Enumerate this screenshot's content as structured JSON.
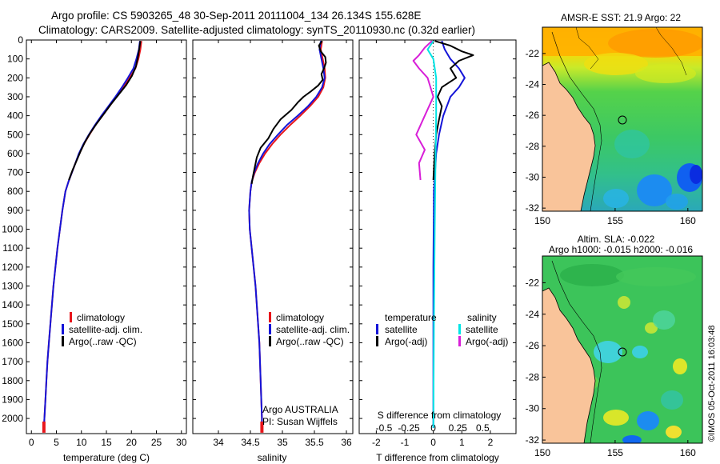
{
  "header": {
    "line1": "Argo profile: CS 5903265_48 30-Sep-2011 20111004_134 26.134S 155.628E",
    "line2": "Climatology: CARS2009. Satellite-adjusted climatology: synTS_20110930.nc (0.32d earlier)"
  },
  "footer": {
    "stamp": "©IMOS 05-Oct-2011 16:03:48"
  },
  "colors": {
    "climatology": "#e8151b",
    "satellite": "#1414d8",
    "argo": "#000000",
    "salinity_satellite": "#00e5e5",
    "salinity_argo": "#d81fd8",
    "land": "#f9c49a"
  },
  "chart_data": [
    {
      "id": "temperature",
      "type": "line",
      "xlabel": "temperature (deg C)",
      "ylabel": "",
      "xlim": [
        -1,
        31
      ],
      "ylim": [
        2080,
        0
      ],
      "xticks": [
        0,
        5,
        10,
        15,
        20,
        25,
        30
      ],
      "yticks": [
        0,
        100,
        200,
        300,
        400,
        500,
        600,
        700,
        800,
        900,
        1000,
        1100,
        1200,
        1300,
        1400,
        1500,
        1600,
        1700,
        1800,
        1900,
        2000
      ],
      "legend": [
        "climatology",
        "satellite-adj. clim.",
        "Argo(..raw -QC)"
      ],
      "series": [
        {
          "name": "climatology",
          "color": "#e8151b",
          "points": [
            [
              22.0,
              5
            ],
            [
              21.8,
              50
            ],
            [
              21.4,
              100
            ],
            [
              20.8,
              150
            ],
            [
              19.6,
              200
            ],
            [
              18.4,
              250
            ],
            [
              17.0,
              300
            ],
            [
              15.6,
              350
            ],
            [
              14.2,
              400
            ],
            [
              12.8,
              450
            ],
            [
              11.6,
              500
            ],
            [
              10.5,
              550
            ],
            [
              9.6,
              600
            ],
            [
              8.8,
              650
            ],
            [
              8.1,
              700
            ],
            [
              7.4,
              750
            ],
            [
              6.8,
              800
            ],
            [
              6.2,
              900
            ],
            [
              5.7,
              1000
            ],
            [
              5.2,
              1100
            ],
            [
              4.8,
              1200
            ],
            [
              4.4,
              1300
            ],
            [
              4.1,
              1400
            ],
            [
              3.8,
              1500
            ],
            [
              3.5,
              1600
            ],
            [
              3.2,
              1700
            ],
            [
              3.0,
              1800
            ],
            [
              2.8,
              1900
            ],
            [
              2.6,
              2000
            ],
            [
              2.5,
              2050
            ]
          ]
        },
        {
          "name": "satellite-adj. clim.",
          "color": "#1414d8",
          "points": [
            [
              21.7,
              5
            ],
            [
              21.5,
              50
            ],
            [
              21.0,
              100
            ],
            [
              20.4,
              150
            ],
            [
              19.3,
              200
            ],
            [
              18.1,
              250
            ],
            [
              16.8,
              300
            ],
            [
              15.4,
              350
            ],
            [
              14.0,
              400
            ],
            [
              12.7,
              450
            ],
            [
              11.5,
              500
            ],
            [
              10.4,
              550
            ],
            [
              9.5,
              600
            ],
            [
              8.8,
              650
            ],
            [
              8.1,
              700
            ],
            [
              7.4,
              750
            ],
            [
              6.8,
              800
            ],
            [
              6.2,
              900
            ],
            [
              5.7,
              1000
            ],
            [
              5.2,
              1100
            ],
            [
              4.8,
              1200
            ],
            [
              4.4,
              1300
            ],
            [
              4.1,
              1400
            ],
            [
              3.8,
              1500
            ],
            [
              3.5,
              1600
            ],
            [
              3.2,
              1700
            ],
            [
              3.0,
              1800
            ],
            [
              2.8,
              1900
            ],
            [
              2.6,
              2000
            ],
            [
              2.5,
              2050
            ]
          ]
        },
        {
          "name": "Argo(..raw -QC)",
          "color": "#000000",
          "points": [
            [
              21.8,
              5
            ],
            [
              21.6,
              40
            ],
            [
              21.3,
              90
            ],
            [
              20.9,
              140
            ],
            [
              20.1,
              190
            ],
            [
              18.9,
              240
            ],
            [
              17.4,
              290
            ],
            [
              15.9,
              340
            ],
            [
              14.5,
              390
            ],
            [
              13.1,
              440
            ],
            [
              11.8,
              490
            ],
            [
              10.7,
              540
            ],
            [
              9.8,
              590
            ],
            [
              9.0,
              640
            ],
            [
              8.2,
              690
            ],
            [
              7.5,
              740
            ]
          ]
        }
      ],
      "markers": [
        {
          "name": "climatology",
          "x": 2.5,
          "y": 2050
        }
      ]
    },
    {
      "id": "salinity",
      "type": "line",
      "xlabel": "salinity",
      "ylabel": "",
      "xlim": [
        33.6,
        36.1
      ],
      "ylim": [
        2080,
        0
      ],
      "xticks": [
        34,
        34.5,
        35,
        35.5,
        36
      ],
      "legend": [
        "climatology",
        "satellite-adj. clim.",
        "Argo(..raw -QC)"
      ],
      "annotations": [
        "Argo AUSTRALIA",
        "PI: Susan Wijffels"
      ],
      "series": [
        {
          "name": "climatology",
          "color": "#e8151b",
          "points": [
            [
              35.62,
              5
            ],
            [
              35.6,
              50
            ],
            [
              35.63,
              100
            ],
            [
              35.66,
              150
            ],
            [
              35.67,
              200
            ],
            [
              35.64,
              250
            ],
            [
              35.56,
              300
            ],
            [
              35.43,
              350
            ],
            [
              35.28,
              400
            ],
            [
              35.12,
              450
            ],
            [
              34.97,
              500
            ],
            [
              34.84,
              550
            ],
            [
              34.73,
              600
            ],
            [
              34.64,
              650
            ],
            [
              34.57,
              700
            ],
            [
              34.52,
              750
            ],
            [
              34.5,
              800
            ],
            [
              34.48,
              900
            ],
            [
              34.49,
              1000
            ],
            [
              34.52,
              1100
            ],
            [
              34.55,
              1200
            ],
            [
              34.58,
              1300
            ],
            [
              34.6,
              1400
            ],
            [
              34.62,
              1500
            ],
            [
              34.64,
              1600
            ],
            [
              34.65,
              1700
            ],
            [
              34.66,
              1800
            ],
            [
              34.67,
              1900
            ],
            [
              34.68,
              2000
            ],
            [
              34.68,
              2050
            ]
          ]
        },
        {
          "name": "satellite-adj. clim.",
          "color": "#1414d8",
          "points": [
            [
              35.6,
              5
            ],
            [
              35.58,
              50
            ],
            [
              35.61,
              100
            ],
            [
              35.64,
              150
            ],
            [
              35.66,
              200
            ],
            [
              35.62,
              250
            ],
            [
              35.53,
              300
            ],
            [
              35.4,
              350
            ],
            [
              35.24,
              400
            ],
            [
              35.07,
              450
            ],
            [
              34.93,
              500
            ],
            [
              34.8,
              550
            ],
            [
              34.7,
              600
            ],
            [
              34.62,
              650
            ],
            [
              34.56,
              700
            ],
            [
              34.52,
              750
            ],
            [
              34.5,
              800
            ],
            [
              34.48,
              900
            ],
            [
              34.49,
              1000
            ],
            [
              34.52,
              1100
            ],
            [
              34.55,
              1200
            ],
            [
              34.58,
              1300
            ],
            [
              34.6,
              1400
            ],
            [
              34.62,
              1500
            ],
            [
              34.64,
              1600
            ],
            [
              34.65,
              1700
            ],
            [
              34.66,
              1800
            ],
            [
              34.67,
              1900
            ],
            [
              34.68,
              2000
            ],
            [
              34.68,
              2050
            ]
          ]
        },
        {
          "name": "Argo(..raw -QC)",
          "color": "#000000",
          "points": [
            [
              35.62,
              5
            ],
            [
              35.57,
              30
            ],
            [
              35.6,
              60
            ],
            [
              35.67,
              90
            ],
            [
              35.68,
              120
            ],
            [
              35.65,
              150
            ],
            [
              35.61,
              180
            ],
            [
              35.63,
              210
            ],
            [
              35.56,
              240
            ],
            [
              35.45,
              270
            ],
            [
              35.33,
              300
            ],
            [
              35.24,
              330
            ],
            [
              35.14,
              370
            ],
            [
              34.97,
              420
            ],
            [
              34.86,
              470
            ],
            [
              34.78,
              520
            ],
            [
              34.66,
              570
            ],
            [
              34.6,
              620
            ],
            [
              34.57,
              670
            ],
            [
              34.54,
              720
            ],
            [
              34.52,
              760
            ]
          ]
        }
      ],
      "markers": [
        {
          "name": "climatology",
          "x": 34.68,
          "y": 2050
        }
      ]
    },
    {
      "id": "difference",
      "type": "line",
      "xlabel": "T difference from climatology",
      "xlabel_top": "S difference from climatology",
      "ylabel": "",
      "xlim": [
        -2.6,
        2.9
      ],
      "ylim": [
        2080,
        0
      ],
      "xticks": [
        -2,
        -1,
        0,
        1,
        2
      ],
      "sxticks": [
        {
          "label": "-0.5",
          "x": -1.73
        },
        {
          "label": "-0.25",
          "x": -0.86
        },
        {
          "label": "0",
          "x": 0.0
        },
        {
          "label": "0.25",
          "x": 0.86
        },
        {
          "label": "0.5",
          "x": 1.73
        }
      ],
      "legend_headers": [
        "temperature",
        "salinity"
      ],
      "legend": [
        "satellite",
        "Argo(-adj)",
        "satellite",
        "Argo(-adj)"
      ],
      "series": [
        {
          "name": "satellite",
          "color": "#1414d8",
          "points": [
            [
              0.3,
              5
            ],
            [
              0.4,
              50
            ],
            [
              0.6,
              100
            ],
            [
              0.9,
              150
            ],
            [
              1.1,
              200
            ],
            [
              0.9,
              250
            ],
            [
              0.6,
              300
            ],
            [
              0.35,
              400
            ],
            [
              0.2,
              500
            ],
            [
              0.1,
              600
            ],
            [
              0.02,
              800
            ],
            [
              0.0,
              1200
            ],
            [
              0.0,
              2050
            ]
          ]
        },
        {
          "name": "Argo(-adj)",
          "color": "#000000",
          "points": [
            [
              0.05,
              5
            ],
            [
              0.6,
              30
            ],
            [
              1.0,
              60
            ],
            [
              1.4,
              80
            ],
            [
              0.9,
              110
            ],
            [
              0.6,
              150
            ],
            [
              0.8,
              200
            ],
            [
              0.3,
              250
            ],
            [
              0.15,
              300
            ],
            [
              0.3,
              350
            ],
            [
              0.2,
              420
            ],
            [
              0.1,
              500
            ],
            [
              0.05,
              600
            ],
            [
              0.0,
              740
            ]
          ]
        },
        {
          "name": "satellite (S)",
          "color": "#00e5e5",
          "points": [
            [
              0.0,
              5
            ],
            [
              -0.2,
              50
            ],
            [
              0.0,
              100
            ],
            [
              0.1,
              200
            ],
            [
              0.1,
              400
            ],
            [
              0.08,
              600
            ],
            [
              0.05,
              1000
            ],
            [
              0.02,
              1500
            ],
            [
              0.0,
              2050
            ]
          ]
        },
        {
          "name": "Argo(-adj) (S)",
          "color": "#d81fd8",
          "points": [
            [
              -0.05,
              5
            ],
            [
              -0.3,
              40
            ],
            [
              -0.5,
              80
            ],
            [
              -0.7,
              110
            ],
            [
              -0.5,
              150
            ],
            [
              -0.2,
              200
            ],
            [
              0.0,
              300
            ],
            [
              -0.3,
              400
            ],
            [
              -0.6,
              500
            ],
            [
              -0.3,
              580
            ],
            [
              -0.5,
              650
            ],
            [
              -0.45,
              740
            ]
          ]
        }
      ]
    }
  ],
  "maps": [
    {
      "id": "sst",
      "title": "AMSR-E SST: 21.9 Argo: 22",
      "xticks": [
        150,
        155,
        160
      ],
      "yticks": [
        -22,
        -24,
        -26,
        -28,
        -30,
        -32
      ],
      "lon": [
        150,
        161
      ],
      "lat": [
        -32.2,
        -20.3
      ],
      "marker": {
        "lon": 155.628,
        "lat": -26.134
      }
    },
    {
      "id": "sla",
      "title": "Altim. SLA: -0.022",
      "subtitle": "Argo h1000: -0.015 h2000: -0.016",
      "xticks": [
        150,
        155,
        160
      ],
      "yticks": [
        -22,
        -24,
        -26,
        -28,
        -30,
        -32
      ],
      "lon": [
        150,
        161
      ],
      "lat": [
        -32.2,
        -20.3
      ],
      "marker": {
        "lon": 155.628,
        "lat": -26.134
      }
    }
  ]
}
